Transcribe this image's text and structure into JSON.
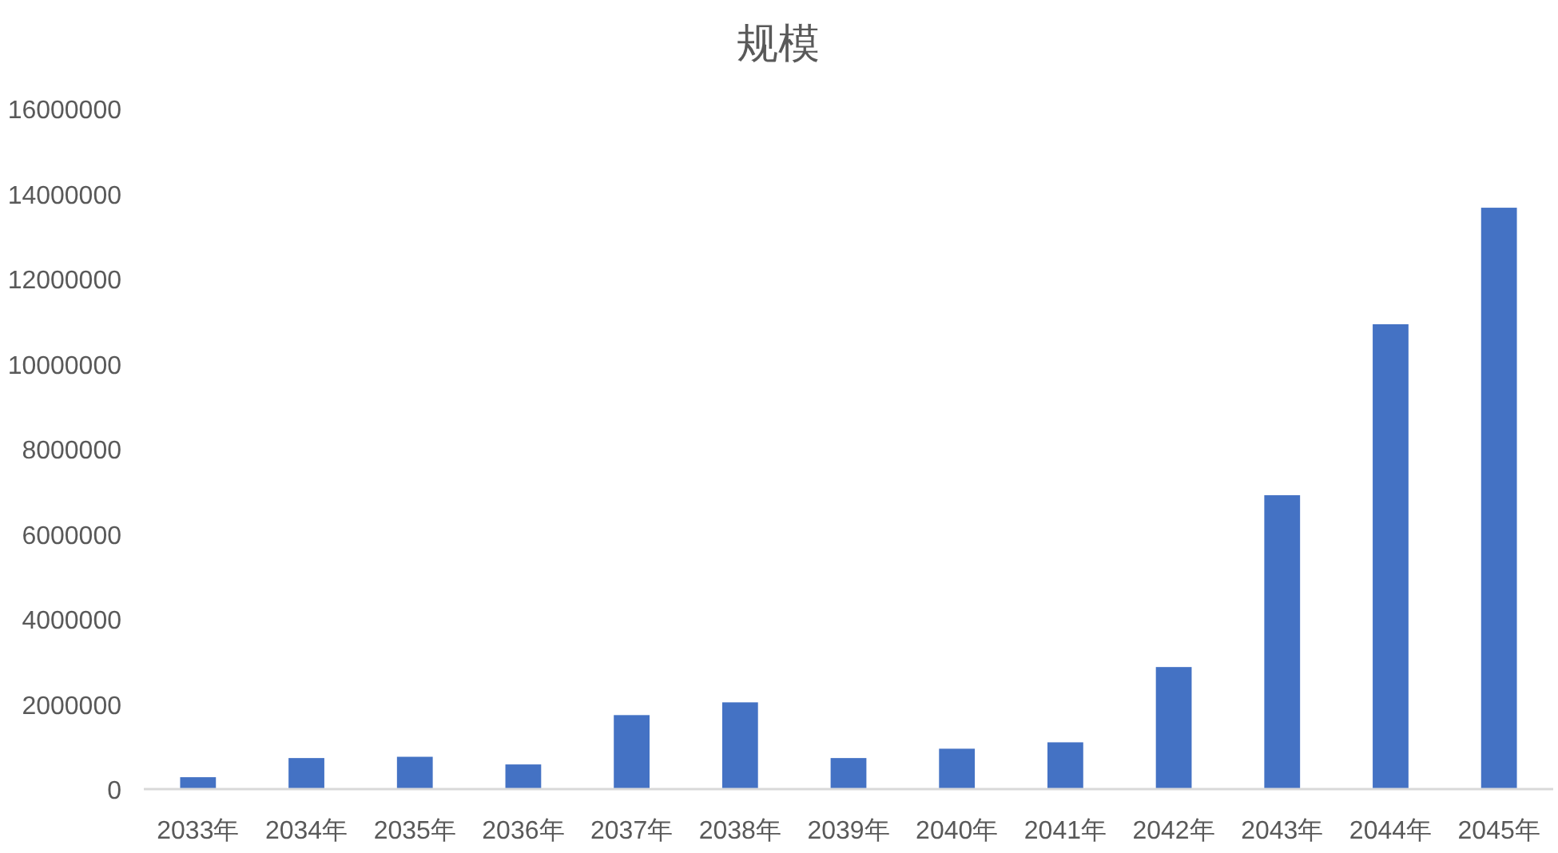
{
  "chart_data": {
    "type": "bar",
    "title": "规模",
    "categories": [
      "2033年",
      "2034年",
      "2035年",
      "2036年",
      "2037年",
      "2038年",
      "2039年",
      "2040年",
      "2041年",
      "2042年",
      "2043年",
      "2044年",
      "2045年"
    ],
    "values": [
      280000,
      730000,
      760000,
      580000,
      1740000,
      2040000,
      730000,
      950000,
      1100000,
      2870000,
      6910000,
      10930000,
      13670000
    ],
    "color": "#4472c4",
    "ylim": [
      0,
      16000000
    ],
    "yticks": [
      0,
      2000000,
      4000000,
      6000000,
      8000000,
      10000000,
      12000000,
      14000000,
      16000000
    ],
    "tick_labels": true
  }
}
